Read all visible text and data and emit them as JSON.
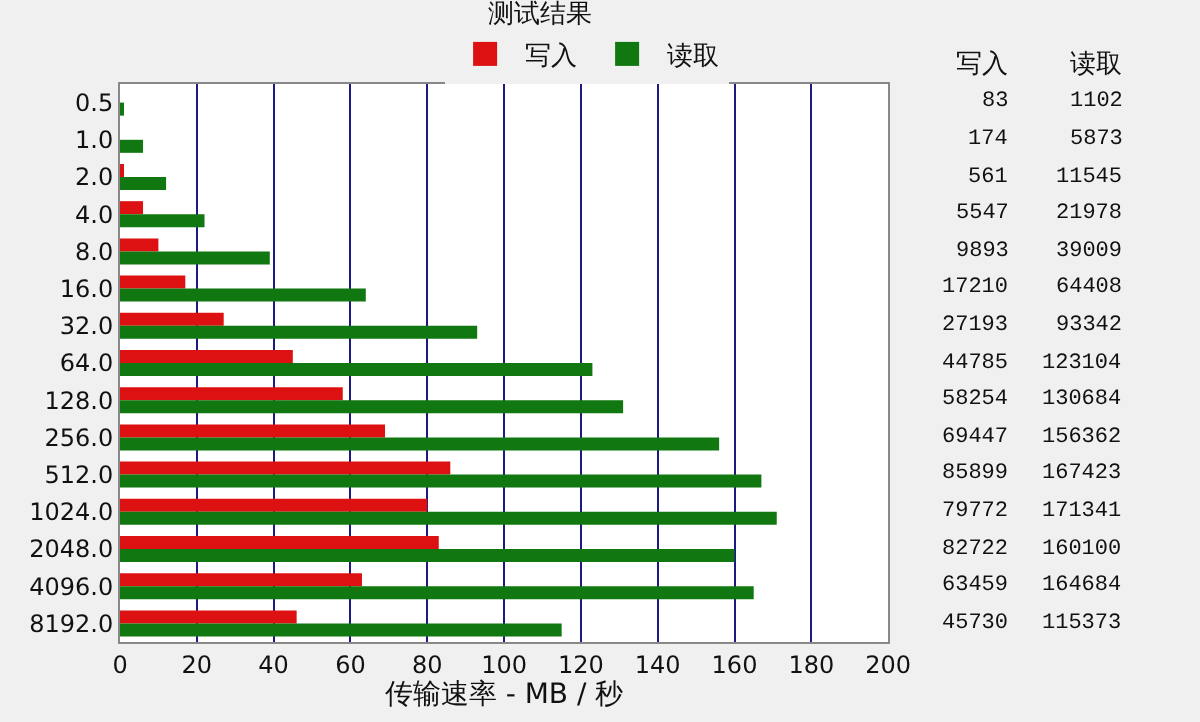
{
  "chart_data": [
    {
      "type": "bar",
      "orientation": "horizontal",
      "title": "测试结果",
      "xlabel": "传输速率 - MB / 秒",
      "categories": [
        "0.5",
        "1.0",
        "2.0",
        "4.0",
        "8.0",
        "16.0",
        "32.0",
        "64.0",
        "128.0",
        "256.0",
        "512.0",
        "1024.0",
        "2048.0",
        "4096.0",
        "8192.0"
      ],
      "series": [
        {
          "name": "写入",
          "color": "#dd1111",
          "values": [
            0,
            0,
            1,
            6,
            10,
            17,
            27,
            45,
            58,
            69,
            86,
            80,
            83,
            63,
            46
          ]
        },
        {
          "name": "读取",
          "color": "#117711",
          "values": [
            1,
            6,
            12,
            22,
            39,
            64,
            93,
            123,
            131,
            156,
            167,
            171,
            160,
            165,
            115
          ]
        }
      ],
      "xlim": [
        0,
        200
      ],
      "xticks": [
        0,
        20,
        40,
        60,
        80,
        100,
        120,
        140,
        160,
        180,
        200
      ],
      "grid": "x",
      "legend": "top"
    },
    {
      "type": "other",
      "annotations": [
        "写入",
        "读取",
        "83",
        "1102",
        "174",
        "5873",
        "561",
        "11545",
        "5547",
        "21978",
        "9893",
        "39009",
        "17210",
        "64408",
        "27193",
        "93342",
        "44785",
        "123104",
        "58254",
        "130684",
        "69447",
        "156362",
        "85899",
        "167423",
        "79772",
        "171341",
        "82722",
        "160100",
        "63459",
        "164684",
        "45730",
        "115373"
      ]
    }
  ]
}
